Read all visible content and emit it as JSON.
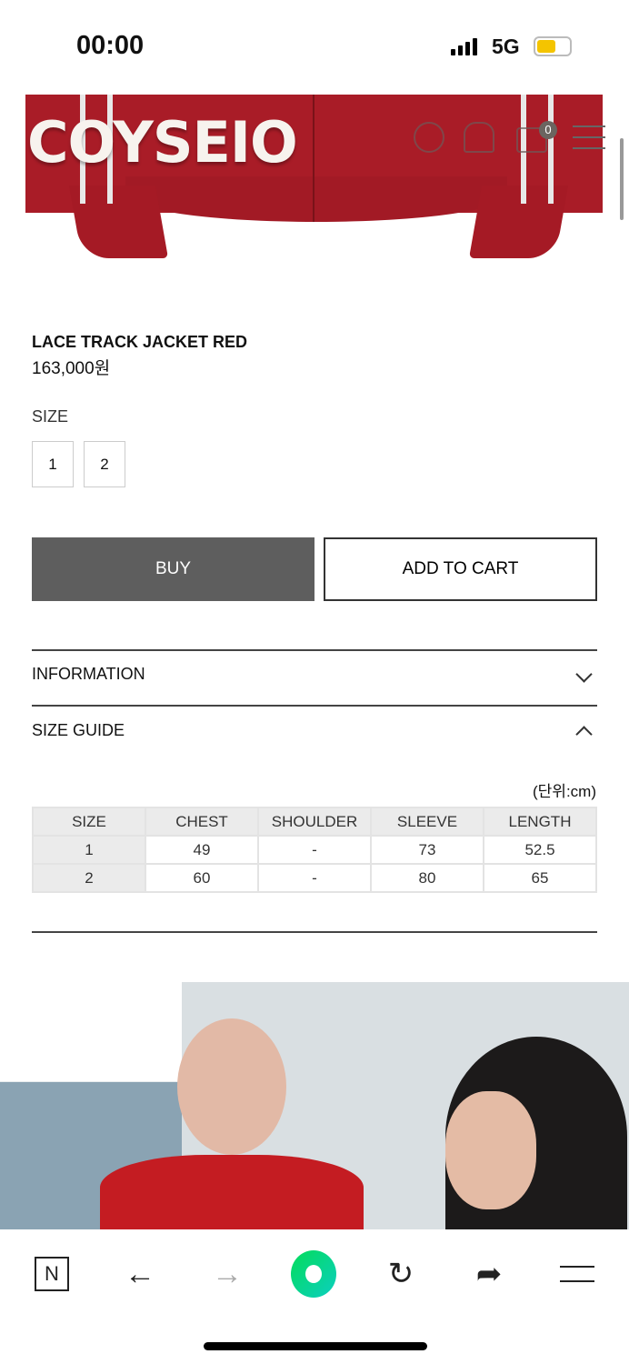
{
  "status_bar": {
    "time": "00:00",
    "network": "5G"
  },
  "header": {
    "logo": "COYSEIO",
    "cart_count": "0",
    "icons": [
      "globe-icon",
      "user-icon",
      "cart-icon",
      "menu-icon"
    ]
  },
  "product": {
    "title": "LACE TRACK JACKET RED",
    "price": "163,000원",
    "size_label": "SIZE",
    "sizes": [
      "1",
      "2"
    ],
    "buy_label": "BUY",
    "add_to_cart_label": "ADD TO CART"
  },
  "accordion": {
    "information": "INFORMATION",
    "size_guide": "SIZE GUIDE"
  },
  "size_guide": {
    "unit": "(단위:cm)",
    "headers": [
      "SIZE",
      "CHEST",
      "SHOULDER",
      "SLEEVE",
      "LENGTH"
    ],
    "rows": [
      [
        "1",
        "49",
        "-",
        "73",
        "52.5"
      ],
      [
        "2",
        "60",
        "-",
        "80",
        "65"
      ]
    ]
  },
  "browser_toolbar": {
    "icons": [
      "naver-icon",
      "back-icon",
      "forward-icon",
      "home-green-icon",
      "reload-icon",
      "share-icon",
      "menu-icon"
    ],
    "accent": "#03cf5d"
  },
  "colors": {
    "buy_bg": "#5e5e5e",
    "jacket": "#a91c27"
  }
}
